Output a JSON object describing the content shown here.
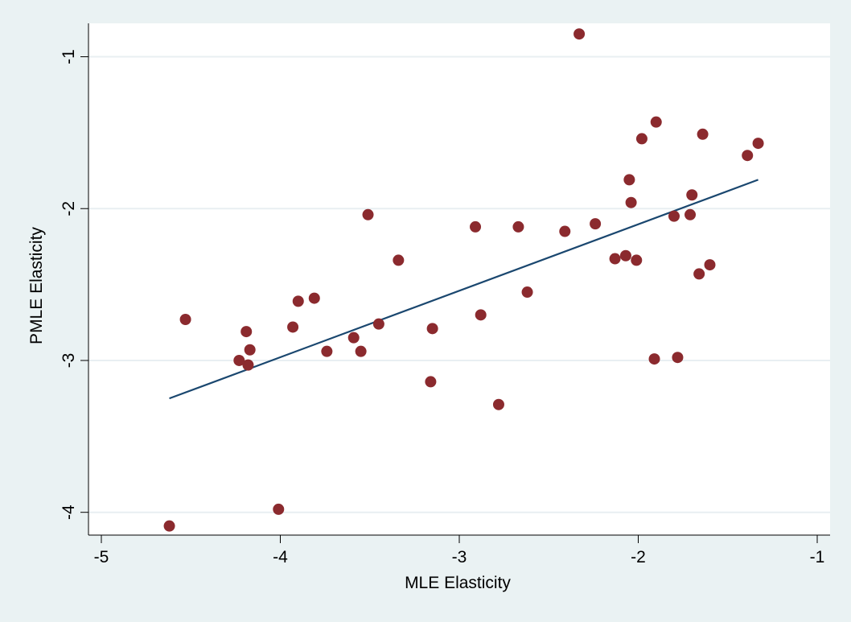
{
  "chart_data": {
    "type": "scatter",
    "xlabel": "MLE Elasticity",
    "ylabel": "PMLE Elasticity",
    "xlim": [
      -5,
      -1
    ],
    "ylim": [
      -4.15,
      -0.78
    ],
    "xticks": [
      -5,
      -4,
      -3,
      -2,
      -1
    ],
    "yticks": [
      -4,
      -3,
      -2,
      -1
    ],
    "grid": "horizontal",
    "legend": "none",
    "colors": {
      "background": "#eaf2f3",
      "plot_area": "#ffffff",
      "gridline": "#e8eff2",
      "marker": "#8b2a2e",
      "fit_line": "#1a476f",
      "axis": "#000000"
    },
    "series": [
      {
        "kind": "points",
        "points": [
          [
            -4.62,
            -4.09
          ],
          [
            -4.01,
            -3.98
          ],
          [
            -4.53,
            -2.73
          ],
          [
            -4.23,
            -3.0
          ],
          [
            -4.18,
            -3.03
          ],
          [
            -4.17,
            -2.93
          ],
          [
            -4.19,
            -2.81
          ],
          [
            -3.93,
            -2.78
          ],
          [
            -3.9,
            -2.61
          ],
          [
            -3.81,
            -2.59
          ],
          [
            -3.74,
            -2.94
          ],
          [
            -3.59,
            -2.85
          ],
          [
            -3.55,
            -2.94
          ],
          [
            -3.51,
            -2.04
          ],
          [
            -3.45,
            -2.76
          ],
          [
            -3.34,
            -2.34
          ],
          [
            -3.16,
            -3.14
          ],
          [
            -3.15,
            -2.79
          ],
          [
            -2.91,
            -2.12
          ],
          [
            -2.88,
            -2.7
          ],
          [
            -2.78,
            -3.29
          ],
          [
            -2.67,
            -2.12
          ],
          [
            -2.62,
            -2.55
          ],
          [
            -2.41,
            -2.15
          ],
          [
            -2.33,
            -0.85
          ],
          [
            -2.24,
            -2.1
          ],
          [
            -2.13,
            -2.33
          ],
          [
            -2.07,
            -2.31
          ],
          [
            -2.05,
            -1.81
          ],
          [
            -2.04,
            -1.96
          ],
          [
            -2.01,
            -2.34
          ],
          [
            -1.91,
            -2.99
          ],
          [
            -1.9,
            -1.43
          ],
          [
            -1.98,
            -1.54
          ],
          [
            -1.8,
            -2.05
          ],
          [
            -1.78,
            -2.98
          ],
          [
            -1.71,
            -2.04
          ],
          [
            -1.7,
            -1.91
          ],
          [
            -1.66,
            -2.43
          ],
          [
            -1.64,
            -1.51
          ],
          [
            -1.6,
            -2.37
          ],
          [
            -1.39,
            -1.65
          ],
          [
            -1.33,
            -1.57
          ]
        ]
      },
      {
        "kind": "fit",
        "points": [
          [
            -4.62,
            -3.25
          ],
          [
            -1.33,
            -1.81
          ]
        ]
      }
    ]
  }
}
